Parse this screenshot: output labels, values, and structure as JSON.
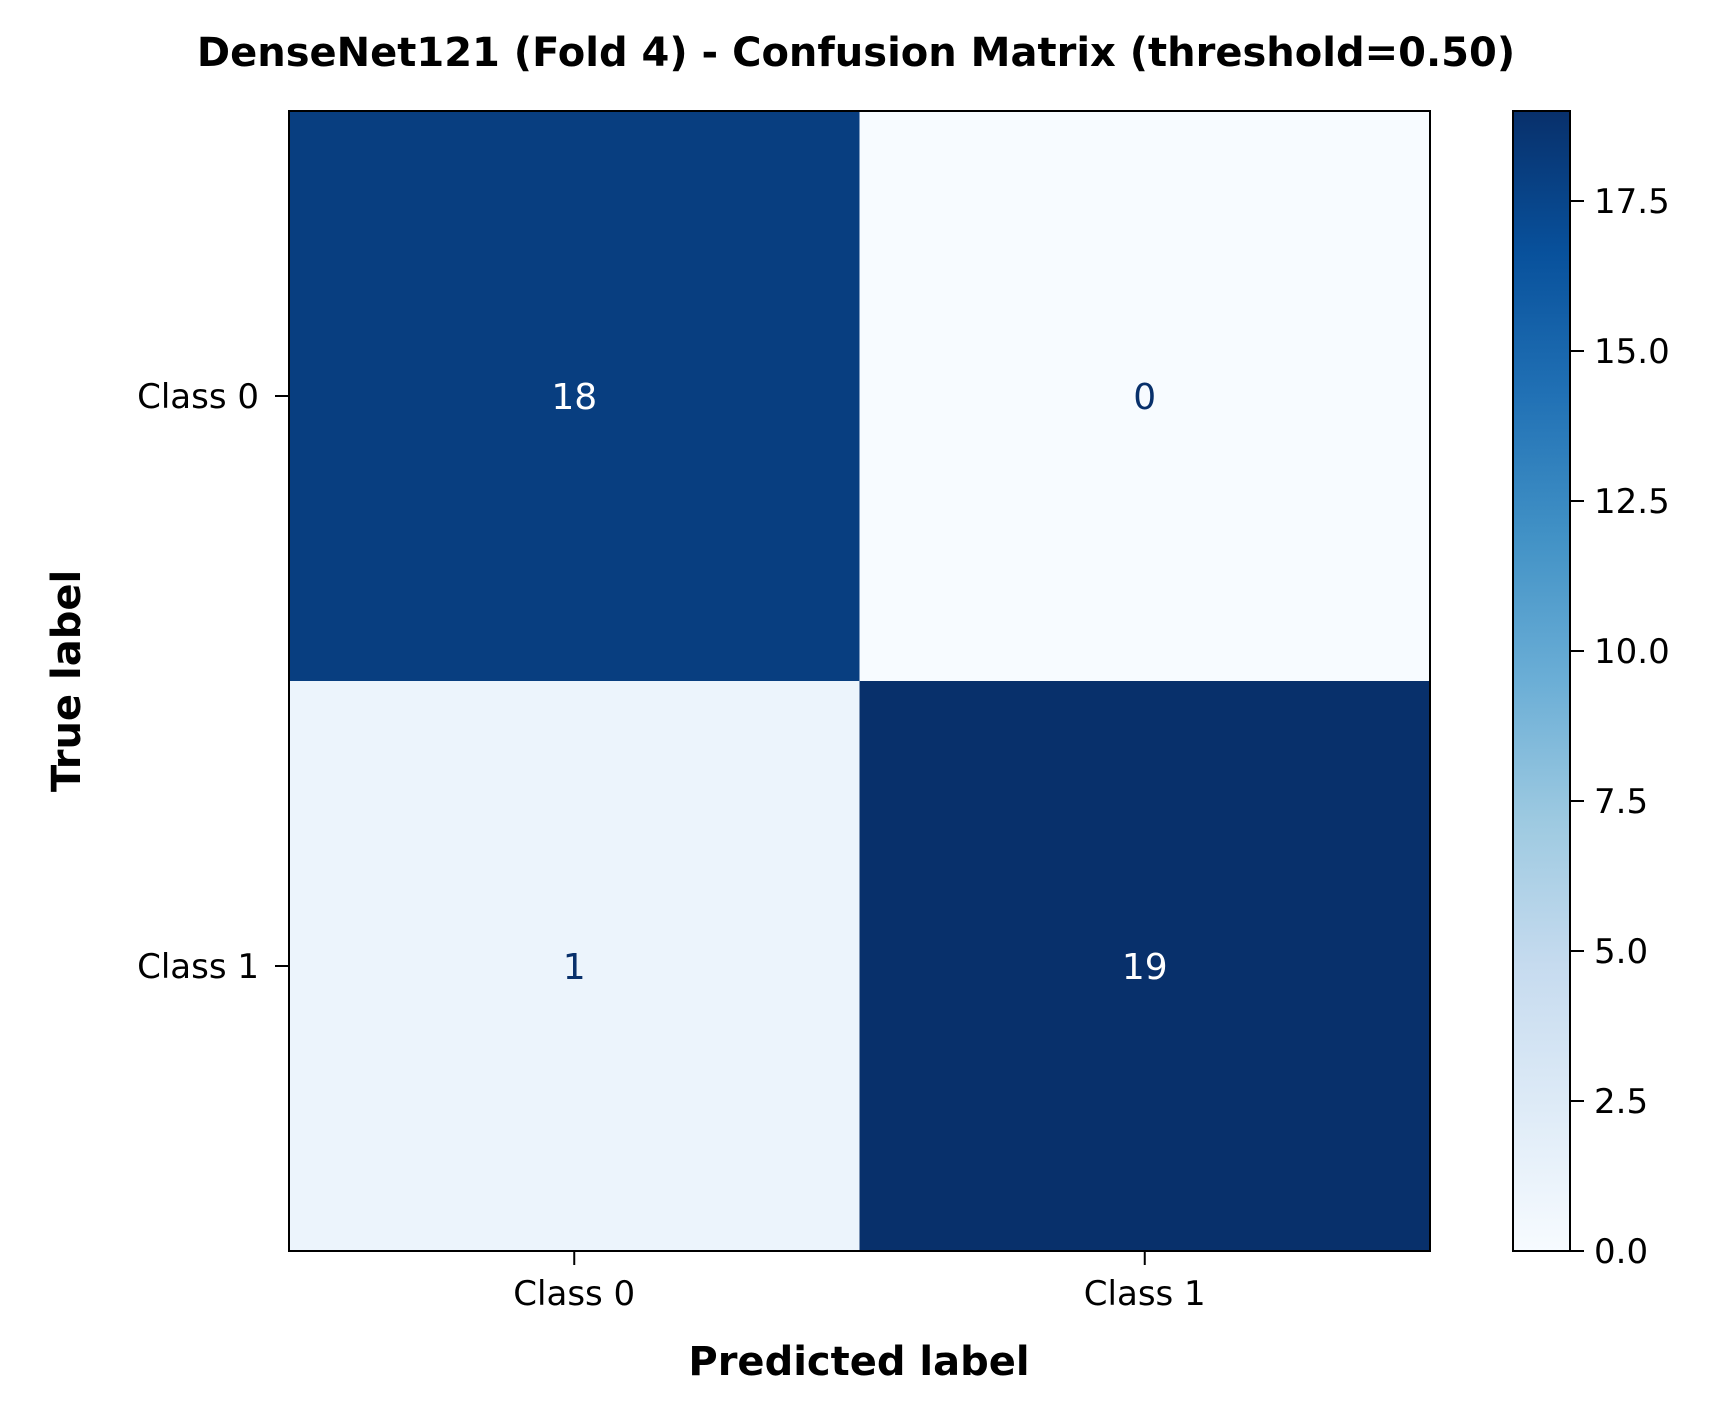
{
  "chart_data": {
    "type": "heatmap",
    "title": "DenseNet121 (Fold 4) - Confusion Matrix (threshold=0.50)",
    "xlabel": "Predicted label",
    "ylabel": "True label",
    "x_categories": [
      "Class 0",
      "Class 1"
    ],
    "y_categories": [
      "Class 0",
      "Class 1"
    ],
    "matrix": [
      [
        18,
        0
      ],
      [
        1,
        19
      ]
    ],
    "cell_labels": [
      [
        "18",
        "0"
      ],
      [
        "1",
        "19"
      ]
    ],
    "colormap": "Blues",
    "colorbar": {
      "range": [
        0,
        19
      ],
      "ticks": [
        0,
        2.5,
        5,
        7.5,
        10,
        12.5,
        15,
        17.5
      ],
      "tick_labels": [
        "0.0",
        "2.5",
        "5.0",
        "7.5",
        "10.0",
        "12.5",
        "15.0",
        "17.5"
      ]
    },
    "colors": {
      "text_on_dark": "#ffffff",
      "text_on_light": "#08306b"
    }
  }
}
